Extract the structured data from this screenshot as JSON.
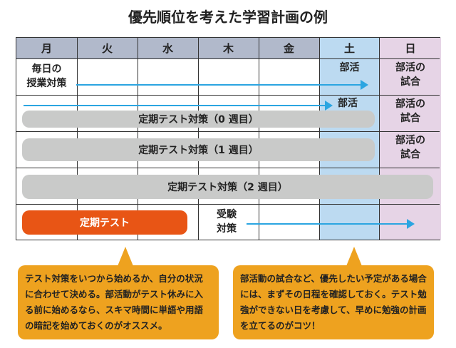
{
  "title": "優先順位を考えた学習計画の例",
  "days": [
    "月",
    "火",
    "水",
    "木",
    "金",
    "土",
    "日"
  ],
  "row1": {
    "label_line1": "毎日の",
    "label_line2": "授業対策",
    "sat": "部活",
    "sun_line1": "部活の",
    "sun_line2": "試合"
  },
  "row2": {
    "sat": "部活",
    "sun_line1": "部活の",
    "sun_line2": "試合",
    "bar": "定期テスト対策（0 週目）"
  },
  "row3": {
    "sun_line1": "部活の",
    "sun_line2": "試合",
    "bar": "定期テスト対策（1 週目）"
  },
  "row4": {
    "bar": "定期テスト対策（2 週目）"
  },
  "row5": {
    "bar": "定期テスト",
    "label_line1": "受験",
    "label_line2": "対策"
  },
  "callouts": [
    {
      "text": "テスト対策をいつから始めるか、自分の状況に合わせて決める。部活動がテスト休みに入る前に始めるなら、スキマ時間に単語や用語の暗記を始めておくのがオススメ。"
    },
    {
      "text": "部活動の試合など、優先したい予定がある場合には、まずその日程を確認しておく。テスト勉強ができない日を考慮して、早めに勉強の計画を立てるのがコツ！"
    }
  ],
  "colors": {
    "header": "#b1b9cb",
    "saturday": "#bcdaf1",
    "sunday": "#e6d4e6",
    "bar": "#c9cac9",
    "test": "#e85515",
    "arrow": "#2ba5e1",
    "callout": "#eea21f"
  }
}
